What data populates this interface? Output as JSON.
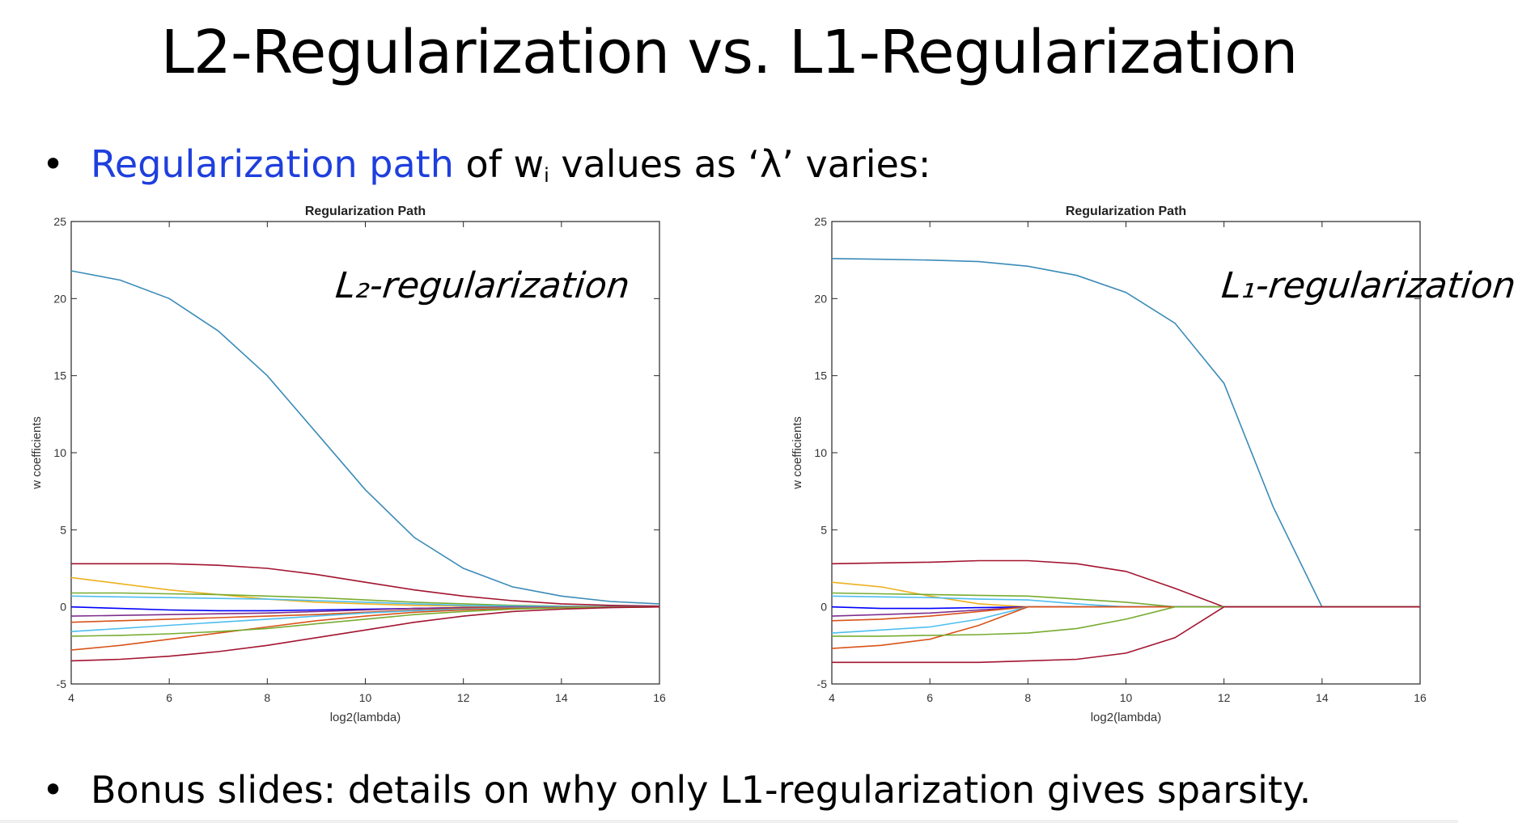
{
  "slide": {
    "title": "L2-Regularization vs. L1-Regularization",
    "bullet1": {
      "marker": "•",
      "highlight": "Regularization path",
      "text_a": " of w",
      "subscript": "i",
      "text_b": " values as ‘λ’ varies:"
    },
    "bullet2": {
      "marker": "•",
      "text": "Bonus slides: details on why only L1-regularization gives sparsity."
    },
    "colors": {
      "highlight": "#1f3fdd",
      "text": "#000000"
    },
    "annotations": {
      "l2": "L₂-regularization",
      "l1": "L₁-regularization"
    }
  },
  "chart_data": [
    {
      "type": "line",
      "title": "Regularization Path",
      "xlabel": "log2(lambda)",
      "ylabel": "w coefficients",
      "xlim": [
        4,
        16
      ],
      "ylim": [
        -5,
        25
      ],
      "xticks": [
        4,
        6,
        8,
        10,
        12,
        14,
        16
      ],
      "yticks": [
        -5,
        0,
        5,
        10,
        15,
        20,
        25
      ],
      "grid": false,
      "x": [
        4,
        5,
        6,
        7,
        8,
        9,
        10,
        11,
        12,
        13,
        14,
        15,
        16
      ],
      "series": [
        {
          "color": "#3b8bb8",
          "values": [
            21.8,
            21.2,
            20.0,
            17.9,
            15.0,
            11.3,
            7.6,
            4.5,
            2.5,
            1.3,
            0.7,
            0.35,
            0.2
          ]
        },
        {
          "color": "#a2142f",
          "values": [
            2.8,
            2.8,
            2.8,
            2.7,
            2.5,
            2.1,
            1.6,
            1.1,
            0.7,
            0.4,
            0.2,
            0.1,
            0.05
          ]
        },
        {
          "color": "#edb120",
          "values": [
            1.9,
            1.5,
            1.1,
            0.8,
            0.5,
            0.3,
            0.2,
            0.1,
            0.05,
            0.03,
            0.02,
            0.01,
            0.0
          ]
        },
        {
          "color": "#77ac30",
          "values": [
            0.9,
            0.9,
            0.85,
            0.8,
            0.7,
            0.6,
            0.45,
            0.3,
            0.2,
            0.1,
            0.05,
            0.02,
            0.0
          ]
        },
        {
          "color": "#4dbeee",
          "values": [
            0.7,
            0.65,
            0.6,
            0.55,
            0.5,
            0.4,
            0.3,
            0.2,
            0.1,
            0.05,
            0.03,
            0.01,
            0.0
          ]
        },
        {
          "color": "#0000ff",
          "values": [
            0.0,
            -0.1,
            -0.2,
            -0.25,
            -0.25,
            -0.2,
            -0.15,
            -0.1,
            -0.05,
            -0.02,
            -0.01,
            0.0,
            0.0
          ]
        },
        {
          "color": "#7e2f8e",
          "values": [
            -0.6,
            -0.55,
            -0.5,
            -0.45,
            -0.4,
            -0.3,
            -0.2,
            -0.1,
            -0.05,
            -0.02,
            -0.01,
            0.0,
            0.0
          ]
        },
        {
          "color": "#d95319",
          "values": [
            -1.0,
            -0.9,
            -0.8,
            -0.7,
            -0.6,
            -0.5,
            -0.35,
            -0.2,
            -0.1,
            -0.05,
            -0.02,
            -0.01,
            0.0
          ]
        },
        {
          "color": "#4dbeee",
          "values": [
            -1.6,
            -1.4,
            -1.2,
            -1.0,
            -0.8,
            -0.6,
            -0.4,
            -0.25,
            -0.15,
            -0.07,
            -0.03,
            -0.01,
            0.0
          ]
        },
        {
          "color": "#d95319",
          "values": [
            -2.8,
            -2.5,
            -2.1,
            -1.7,
            -1.3,
            -0.9,
            -0.6,
            -0.35,
            -0.2,
            -0.1,
            -0.05,
            -0.02,
            0.0
          ]
        },
        {
          "color": "#77ac30",
          "values": [
            -1.9,
            -1.85,
            -1.75,
            -1.6,
            -1.4,
            -1.1,
            -0.8,
            -0.5,
            -0.3,
            -0.15,
            -0.07,
            -0.03,
            0.0
          ]
        },
        {
          "color": "#a2142f",
          "values": [
            -3.5,
            -3.4,
            -3.2,
            -2.9,
            -2.5,
            -2.0,
            -1.5,
            -1.0,
            -0.6,
            -0.3,
            -0.15,
            -0.05,
            0.0
          ]
        }
      ]
    },
    {
      "type": "line",
      "title": "Regularization Path",
      "xlabel": "log2(lambda)",
      "ylabel": "w coefficients",
      "xlim": [
        4,
        16
      ],
      "ylim": [
        -5,
        25
      ],
      "xticks": [
        4,
        6,
        8,
        10,
        12,
        14,
        16
      ],
      "yticks": [
        -5,
        0,
        5,
        10,
        15,
        20,
        25
      ],
      "grid": false,
      "x": [
        4,
        5,
        6,
        7,
        8,
        9,
        10,
        11,
        12,
        13,
        14,
        15,
        16
      ],
      "series": [
        {
          "color": "#3b8bb8",
          "values": [
            22.6,
            22.55,
            22.5,
            22.4,
            22.1,
            21.5,
            20.4,
            18.4,
            14.5,
            6.5,
            0.0,
            0.0,
            0.0
          ]
        },
        {
          "color": "#a2142f",
          "values": [
            2.8,
            2.85,
            2.9,
            3.0,
            3.0,
            2.8,
            2.3,
            1.2,
            0.0,
            0.0,
            0.0,
            0.0,
            0.0
          ]
        },
        {
          "color": "#edb120",
          "values": [
            1.6,
            1.3,
            0.7,
            0.2,
            0.0,
            0.0,
            0.0,
            0.0,
            0.0,
            0.0,
            0.0,
            0.0,
            0.0
          ]
        },
        {
          "color": "#77ac30",
          "values": [
            0.9,
            0.85,
            0.8,
            0.75,
            0.7,
            0.5,
            0.3,
            0.0,
            0.0,
            0.0,
            0.0,
            0.0,
            0.0
          ]
        },
        {
          "color": "#4dbeee",
          "values": [
            0.7,
            0.65,
            0.6,
            0.5,
            0.45,
            0.2,
            0.0,
            0.0,
            0.0,
            0.0,
            0.0,
            0.0,
            0.0
          ]
        },
        {
          "color": "#0000ff",
          "values": [
            0.0,
            -0.1,
            -0.1,
            -0.05,
            0.0,
            0.0,
            0.0,
            0.0,
            0.0,
            0.0,
            0.0,
            0.0,
            0.0
          ]
        },
        {
          "color": "#7e2f8e",
          "values": [
            -0.6,
            -0.5,
            -0.4,
            -0.2,
            0.0,
            0.0,
            0.0,
            0.0,
            0.0,
            0.0,
            0.0,
            0.0,
            0.0
          ]
        },
        {
          "color": "#d95319",
          "values": [
            -0.9,
            -0.8,
            -0.6,
            -0.3,
            0.0,
            0.0,
            0.0,
            0.0,
            0.0,
            0.0,
            0.0,
            0.0,
            0.0
          ]
        },
        {
          "color": "#4dbeee",
          "values": [
            -1.7,
            -1.5,
            -1.3,
            -0.8,
            0.0,
            0.0,
            0.0,
            0.0,
            0.0,
            0.0,
            0.0,
            0.0,
            0.0
          ]
        },
        {
          "color": "#d95319",
          "values": [
            -2.7,
            -2.5,
            -2.1,
            -1.2,
            0.0,
            0.0,
            0.0,
            0.0,
            0.0,
            0.0,
            0.0,
            0.0,
            0.0
          ]
        },
        {
          "color": "#77ac30",
          "values": [
            -1.9,
            -1.9,
            -1.85,
            -1.8,
            -1.7,
            -1.4,
            -0.8,
            0.0,
            0.0,
            0.0,
            0.0,
            0.0,
            0.0
          ]
        },
        {
          "color": "#a2142f",
          "values": [
            -3.6,
            -3.6,
            -3.6,
            -3.6,
            -3.5,
            -3.4,
            -3.0,
            -2.0,
            0.0,
            0.0,
            0.0,
            0.0,
            0.0
          ]
        }
      ]
    }
  ]
}
